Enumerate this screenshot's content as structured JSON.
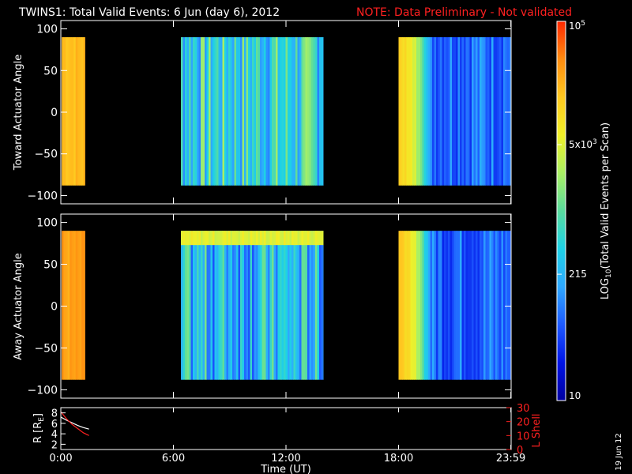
{
  "title": "TWINS1: Total Valid Events:  6 Jun (day   6), 2012",
  "note": "NOTE: Data Preliminary - Not validated",
  "date_stamp": "19 Jun 12",
  "colors": {
    "background": "#000000",
    "foreground": "#ffffff",
    "note": "#ff2020",
    "lshell": "#ff2020"
  },
  "colorbar": {
    "label": "LOG10(Total Valid Events per Scan)",
    "label_main": "LOG",
    "label_sub": "10",
    "label_rest": "(Total Valid Events per Scan)",
    "scale": "log",
    "range": [
      10,
      100000
    ],
    "ticks": [
      {
        "value": 100000,
        "label": "10",
        "sup": "5"
      },
      {
        "value": 5000,
        "label": "5x10",
        "sup": "3"
      },
      {
        "value": 215,
        "label": "215",
        "sup": ""
      },
      {
        "value": 10,
        "label": "10",
        "sup": ""
      }
    ],
    "colormap": [
      "#0000a0",
      "#0014e6",
      "#1e5aff",
      "#2ea8ff",
      "#1ed2e6",
      "#5adc9e",
      "#aaf064",
      "#f0f028",
      "#ffc820",
      "#ff8c10",
      "#ff2800"
    ]
  },
  "time_axis": {
    "label": "Time (UT)",
    "range_hours": [
      0,
      24
    ],
    "ticks": [
      {
        "value": 0,
        "label": "0:00"
      },
      {
        "value": 6,
        "label": "6:00"
      },
      {
        "value": 12,
        "label": "12:00"
      },
      {
        "value": 18,
        "label": "18:00"
      },
      {
        "value": 23.983,
        "label": "23:59"
      }
    ]
  },
  "chart_data": [
    {
      "type": "heatmap",
      "ylabel": "Toward Actuator Angle",
      "ylim": [
        -110,
        110
      ],
      "yticks": [
        100,
        50,
        0,
        -50,
        -100
      ],
      "data_y_range": [
        -88,
        90
      ],
      "segments": [
        {
          "start": 0.05,
          "end": 1.3,
          "level": 0.82,
          "variation": "low"
        },
        {
          "start": 6.4,
          "end": 14.0,
          "level": 0.42,
          "variation": "high"
        },
        {
          "start": 18.0,
          "end": 24.0,
          "level": 0.24,
          "variation": "medium",
          "lead_hours": 1.7,
          "lead_level": 0.78
        }
      ]
    },
    {
      "type": "heatmap",
      "ylabel": "Away Actuator Angle",
      "ylim": [
        -110,
        110
      ],
      "yticks": [
        100,
        50,
        0,
        -50,
        -100
      ],
      "data_y_range": [
        -88,
        90
      ],
      "segments": [
        {
          "start": 0.05,
          "end": 1.3,
          "level": 0.86,
          "variation": "low"
        },
        {
          "start": 6.4,
          "end": 14.0,
          "level": 0.36,
          "variation": "high",
          "top_band_level": 0.68
        },
        {
          "start": 18.0,
          "end": 24.0,
          "level": 0.22,
          "variation": "medium",
          "lead_hours": 1.7,
          "lead_level": 0.8
        }
      ]
    },
    {
      "type": "line",
      "ylabel": "R [RE]",
      "ylabel_main": "R [R",
      "ylabel_sub": "E",
      "ylabel_end": "]",
      "ylim": [
        1,
        9
      ],
      "yticks": [
        2,
        4,
        6,
        8
      ],
      "y2label": "L Shell",
      "y2lim": [
        0,
        30
      ],
      "y2ticks": [
        0,
        10,
        20,
        30
      ],
      "series": [
        {
          "name": "",
          "axis": "left",
          "color": "#ffffff",
          "x": [
            0.0,
            0.3,
            0.6,
            0.9,
            1.2,
            1.5
          ],
          "y": [
            7.2,
            6.6,
            6.1,
            5.6,
            5.2,
            4.9
          ]
        },
        {
          "name": "",
          "axis": "right",
          "color": "#ff2020",
          "x": [
            0.0,
            0.3,
            0.6,
            0.9,
            1.2,
            1.5
          ],
          "y": [
            27,
            22,
            18,
            15,
            12,
            10
          ]
        }
      ]
    }
  ]
}
